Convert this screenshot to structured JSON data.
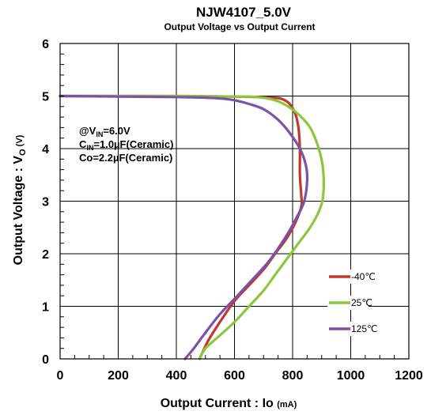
{
  "chart_data": {
    "type": "line",
    "title": "NJW4107_5.0V",
    "subtitle": "Output Voltage vs Output Current",
    "xlabel": {
      "main": "Output Current : Io ",
      "unit": "(mA)"
    },
    "ylabel": {
      "prefix": "Output Voltage : V",
      "sub": "O",
      "unit": " (V)"
    },
    "xlim": [
      0,
      1200
    ],
    "ylim": [
      0,
      6
    ],
    "x_ticks": [
      0,
      200,
      400,
      600,
      800,
      1000,
      1200
    ],
    "y_ticks": [
      0,
      1,
      2,
      3,
      4,
      5,
      6
    ],
    "grid": true,
    "annotations": {
      "vin": {
        "prefix": "@V",
        "sub": "IN",
        "suffix": "=6.0V"
      },
      "cin": {
        "prefix": "C",
        "sub": "IN",
        "suffix": "=1.0µF(Ceramic)"
      },
      "co": {
        "text": "Co=2.2µF(Ceramic)"
      }
    },
    "legend_position": "bottom-right",
    "series": [
      {
        "name": "-40℃",
        "color": "#c0392b",
        "points": [
          [
            0,
            5.0
          ],
          [
            200,
            5.0
          ],
          [
            400,
            5.0
          ],
          [
            600,
            4.99
          ],
          [
            680,
            4.98
          ],
          [
            720,
            4.97
          ],
          [
            760,
            4.95
          ],
          [
            790,
            4.85
          ],
          [
            810,
            4.65
          ],
          [
            820,
            4.4
          ],
          [
            825,
            4.0
          ],
          [
            825,
            3.5
          ],
          [
            830,
            3.1
          ],
          [
            830,
            2.9
          ],
          [
            810,
            2.6
          ],
          [
            780,
            2.3
          ],
          [
            740,
            2.0
          ],
          [
            700,
            1.7
          ],
          [
            650,
            1.4
          ],
          [
            600,
            1.1
          ],
          [
            550,
            0.7
          ],
          [
            510,
            0.35
          ],
          [
            480,
            0.0
          ]
        ]
      },
      {
        "name": "25℃",
        "color": "#8cc63f",
        "points": [
          [
            0,
            5.0
          ],
          [
            200,
            5.0
          ],
          [
            400,
            5.0
          ],
          [
            600,
            4.99
          ],
          [
            680,
            4.98
          ],
          [
            750,
            4.9
          ],
          [
            810,
            4.7
          ],
          [
            860,
            4.4
          ],
          [
            890,
            4.0
          ],
          [
            905,
            3.6
          ],
          [
            905,
            3.1
          ],
          [
            890,
            2.8
          ],
          [
            860,
            2.5
          ],
          [
            820,
            2.2
          ],
          [
            780,
            1.9
          ],
          [
            740,
            1.6
          ],
          [
            700,
            1.3
          ],
          [
            650,
            1.0
          ],
          [
            600,
            0.7
          ],
          [
            540,
            0.4
          ],
          [
            500,
            0.2
          ],
          [
            480,
            0.0
          ]
        ]
      },
      {
        "name": "125℃",
        "color": "#7b52a8",
        "points": [
          [
            0,
            5.0
          ],
          [
            200,
            4.99
          ],
          [
            400,
            4.98
          ],
          [
            500,
            4.97
          ],
          [
            560,
            4.95
          ],
          [
            600,
            4.92
          ],
          [
            650,
            4.85
          ],
          [
            700,
            4.75
          ],
          [
            750,
            4.55
          ],
          [
            790,
            4.3
          ],
          [
            825,
            4.0
          ],
          [
            845,
            3.7
          ],
          [
            850,
            3.4
          ],
          [
            840,
            3.0
          ],
          [
            815,
            2.7
          ],
          [
            785,
            2.4
          ],
          [
            750,
            2.1
          ],
          [
            710,
            1.8
          ],
          [
            660,
            1.5
          ],
          [
            610,
            1.2
          ],
          [
            550,
            0.85
          ],
          [
            500,
            0.5
          ],
          [
            460,
            0.2
          ],
          [
            430,
            0.0
          ]
        ]
      }
    ]
  }
}
